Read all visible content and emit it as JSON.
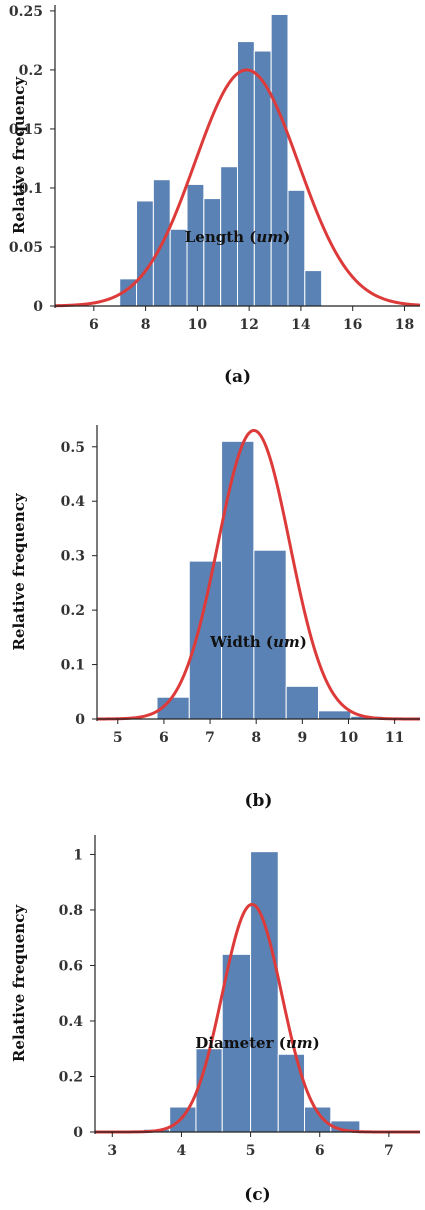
{
  "colors": {
    "bar": "#5b82b4",
    "bar_edge": "#ffffff",
    "curve": "#dd3a3a",
    "axis": "#222222"
  },
  "chart_data": [
    {
      "type": "bar",
      "caption": "(a)",
      "xlabel_prefix": "Length (",
      "xlabel_unit": "um",
      "xlabel_suffix": ")",
      "ylabel": "Relative frequency",
      "xlim": [
        4.5,
        18.6
      ],
      "ylim": [
        0,
        0.255
      ],
      "xticks": [
        6,
        8,
        10,
        12,
        14,
        16,
        18
      ],
      "yticks": [
        0,
        0.05,
        0.1,
        0.15,
        0.2,
        0.25
      ],
      "ytick_labels": [
        "0",
        "0.05",
        "0.1",
        "0.15",
        "0.2",
        "0.25"
      ],
      "bin_edges": [
        7.0,
        7.65,
        8.3,
        8.95,
        9.6,
        10.25,
        10.9,
        11.55,
        12.2,
        12.85,
        13.5,
        14.15,
        14.8,
        15.45
      ],
      "values": [
        0.023,
        0.089,
        0.107,
        0.065,
        0.103,
        0.091,
        0.118,
        0.224,
        0.216,
        0.247,
        0.098,
        0.03,
        0.0
      ],
      "fit": {
        "type": "normal",
        "mean": 11.9,
        "sd": 2.0,
        "peak": 0.2
      }
    },
    {
      "type": "bar",
      "caption": "(b)",
      "xlabel_prefix": "Width (",
      "xlabel_unit": "um",
      "xlabel_suffix": ")",
      "ylabel": "Relative frequency",
      "xlim": [
        4.55,
        11.55
      ],
      "ylim": [
        0,
        0.54
      ],
      "xticks": [
        5,
        6,
        7,
        8,
        9,
        10,
        11
      ],
      "yticks": [
        0,
        0.1,
        0.2,
        0.3,
        0.4,
        0.5
      ],
      "ytick_labels": [
        "0",
        "0.1",
        "0.2",
        "0.3",
        "0.4",
        "0.5"
      ],
      "bin_edges": [
        5.85,
        6.55,
        7.25,
        7.95,
        8.65,
        9.35,
        10.05,
        10.75,
        11.45
      ],
      "values": [
        0.04,
        0.29,
        0.51,
        0.31,
        0.06,
        0.015,
        0.005,
        0.0
      ],
      "fit": {
        "type": "normal",
        "mean": 7.95,
        "sd": 0.78,
        "peak": 0.53
      }
    },
    {
      "type": "bar",
      "caption": "(c)",
      "xlabel_prefix": "Diameter (",
      "xlabel_unit": "um",
      "xlabel_suffix": ")",
      "ylabel": "Relative frequency",
      "xlim": [
        2.75,
        7.45
      ],
      "ylim": [
        0,
        1.07
      ],
      "xticks": [
        3,
        4,
        5,
        6,
        7
      ],
      "yticks": [
        0,
        0.2,
        0.4,
        0.6,
        0.8,
        1.0
      ],
      "ytick_labels": [
        "0",
        "0.2",
        "0.4",
        "0.6",
        "0.8",
        "1"
      ],
      "bin_edges": [
        3.45,
        3.83,
        4.21,
        4.59,
        5.0,
        5.4,
        5.78,
        6.16,
        6.58
      ],
      "values": [
        0.01,
        0.09,
        0.3,
        0.64,
        1.01,
        0.28,
        0.09,
        0.04
      ],
      "fit": {
        "type": "normal",
        "mean": 5.02,
        "sd": 0.43,
        "peak": 0.82
      }
    }
  ]
}
